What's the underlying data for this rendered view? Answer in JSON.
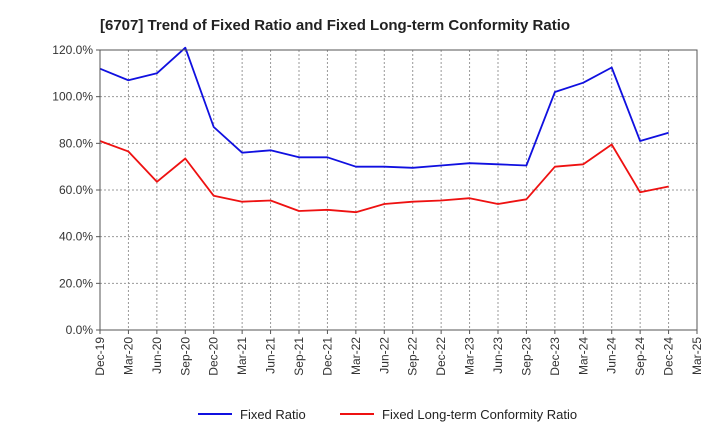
{
  "chart_data": {
    "type": "line",
    "title": "[6707]  Trend of Fixed Ratio and Fixed Long-term Conformity Ratio",
    "xlabel": "",
    "ylabel": "",
    "ylim": [
      0,
      120
    ],
    "y_ticks": [
      "0.0%",
      "20.0%",
      "40.0%",
      "60.0%",
      "80.0%",
      "100.0%",
      "120.0%"
    ],
    "categories": [
      "Dec-19",
      "Mar-20",
      "Jun-20",
      "Sep-20",
      "Dec-20",
      "Mar-21",
      "Jun-21",
      "Sep-21",
      "Dec-21",
      "Mar-22",
      "Jun-22",
      "Sep-22",
      "Dec-22",
      "Mar-23",
      "Jun-23",
      "Sep-23",
      "Dec-23",
      "Mar-24",
      "Jun-24",
      "Sep-24",
      "Dec-24",
      "Mar-25"
    ],
    "grid": true,
    "legend_position": "bottom",
    "series": [
      {
        "name": "Fixed Ratio",
        "color": "#1010e0",
        "values": [
          112,
          107,
          110,
          121,
          87,
          76,
          77,
          74,
          74,
          70,
          70,
          69.5,
          70.5,
          71.5,
          71,
          70.5,
          102,
          106,
          112.5,
          81,
          84.5,
          null
        ]
      },
      {
        "name": "Fixed Long-term Conformity Ratio",
        "color": "#ee1111",
        "values": [
          81,
          76.5,
          63.5,
          73.5,
          57.5,
          55,
          55.5,
          51,
          51.5,
          50.5,
          54,
          55,
          55.5,
          56.5,
          54,
          56,
          70,
          71,
          79.5,
          59,
          61.5,
          null
        ]
      }
    ]
  }
}
